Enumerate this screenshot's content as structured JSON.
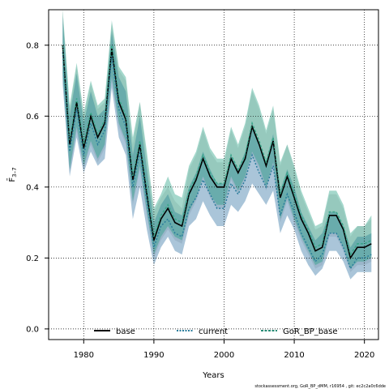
{
  "chart_data": {
    "type": "line",
    "xlabel": "Years",
    "ylabel": "F̄3–7",
    "ylabel_parts": {
      "main": "F̄",
      "sub": "3–7"
    },
    "xlim": [
      1975,
      2022
    ],
    "ylim": [
      -0.03,
      0.9
    ],
    "xticks": [
      1980,
      1990,
      2000,
      2010,
      2020
    ],
    "yticks": [
      0.0,
      0.2,
      0.4,
      0.6,
      0.8
    ],
    "ytick_labels": [
      "0.0",
      "0.2",
      "0.4",
      "0.6",
      "0.8"
    ],
    "grid": true,
    "legend_position": "bottom",
    "footer_note": "stockassessment.org, GoR_BP_dMM, r16954 , git: ec2c2a0c6dde",
    "x": [
      1977,
      1978,
      1979,
      1980,
      1981,
      1982,
      1983,
      1984,
      1985,
      1986,
      1987,
      1988,
      1989,
      1990,
      1991,
      1992,
      1993,
      1994,
      1995,
      1996,
      1997,
      1998,
      1999,
      2000,
      2001,
      2002,
      2003,
      2004,
      2005,
      2006,
      2007,
      2008,
      2009,
      2010,
      2011,
      2012,
      2013,
      2014,
      2015,
      2016,
      2017,
      2018,
      2019,
      2020,
      2021
    ],
    "series": [
      {
        "name": "base",
        "color": "#000000",
        "dash": "solid",
        "values": [
          0.8,
          0.52,
          0.64,
          0.51,
          0.6,
          0.54,
          0.58,
          0.79,
          0.64,
          0.59,
          0.42,
          0.52,
          0.38,
          0.25,
          0.31,
          0.34,
          0.3,
          0.29,
          0.38,
          0.42,
          0.48,
          0.43,
          0.4,
          0.4,
          0.48,
          0.44,
          0.48,
          0.57,
          0.52,
          0.46,
          0.53,
          0.37,
          0.43,
          0.37,
          0.31,
          0.27,
          0.22,
          0.23,
          0.32,
          0.32,
          0.28,
          0.2,
          0.23,
          0.23,
          0.24
        ],
        "upper": [
          0.9,
          0.62,
          0.74,
          0.6,
          0.69,
          0.62,
          0.64,
          0.86,
          0.73,
          0.7,
          0.52,
          0.64,
          0.48,
          0.33,
          0.37,
          0.4,
          0.36,
          0.34,
          0.45,
          0.49,
          0.56,
          0.5,
          0.47,
          0.47,
          0.56,
          0.51,
          0.57,
          0.67,
          0.62,
          0.55,
          0.62,
          0.46,
          0.52,
          0.45,
          0.38,
          0.33,
          0.28,
          0.29,
          0.38,
          0.38,
          0.34,
          0.26,
          0.29,
          0.29,
          0.31
        ],
        "lower": [
          0.71,
          0.44,
          0.56,
          0.45,
          0.52,
          0.47,
          0.51,
          0.7,
          0.57,
          0.52,
          0.35,
          0.45,
          0.32,
          0.2,
          0.25,
          0.28,
          0.25,
          0.24,
          0.32,
          0.36,
          0.42,
          0.37,
          0.34,
          0.34,
          0.42,
          0.38,
          0.42,
          0.49,
          0.45,
          0.39,
          0.46,
          0.3,
          0.36,
          0.3,
          0.25,
          0.21,
          0.17,
          0.18,
          0.26,
          0.26,
          0.22,
          0.16,
          0.18,
          0.18,
          0.19
        ]
      },
      {
        "name": "current",
        "color": "#2b7d9c",
        "dash": "dotted",
        "values": [
          0.78,
          0.5,
          0.62,
          0.49,
          0.58,
          0.52,
          0.56,
          0.77,
          0.62,
          0.57,
          0.4,
          0.5,
          0.36,
          0.23,
          0.29,
          0.31,
          0.27,
          0.26,
          0.34,
          0.37,
          0.42,
          0.38,
          0.34,
          0.34,
          0.41,
          0.38,
          0.42,
          0.49,
          0.44,
          0.4,
          0.46,
          0.32,
          0.38,
          0.33,
          0.27,
          0.23,
          0.19,
          0.21,
          0.27,
          0.27,
          0.23,
          0.17,
          0.2,
          0.2,
          0.21
        ],
        "upper": [
          0.88,
          0.6,
          0.72,
          0.58,
          0.67,
          0.6,
          0.62,
          0.84,
          0.71,
          0.67,
          0.49,
          0.6,
          0.45,
          0.3,
          0.35,
          0.38,
          0.33,
          0.32,
          0.4,
          0.44,
          0.5,
          0.45,
          0.41,
          0.41,
          0.49,
          0.45,
          0.5,
          0.58,
          0.52,
          0.47,
          0.55,
          0.39,
          0.45,
          0.4,
          0.33,
          0.29,
          0.25,
          0.27,
          0.33,
          0.33,
          0.29,
          0.23,
          0.26,
          0.26,
          0.27
        ],
        "lower": [
          0.69,
          0.43,
          0.54,
          0.44,
          0.5,
          0.46,
          0.48,
          0.68,
          0.54,
          0.49,
          0.31,
          0.4,
          0.28,
          0.18,
          0.23,
          0.26,
          0.22,
          0.21,
          0.29,
          0.31,
          0.36,
          0.32,
          0.29,
          0.29,
          0.35,
          0.33,
          0.36,
          0.41,
          0.38,
          0.35,
          0.39,
          0.27,
          0.32,
          0.28,
          0.22,
          0.18,
          0.15,
          0.17,
          0.22,
          0.22,
          0.19,
          0.14,
          0.16,
          0.16,
          0.16
        ]
      },
      {
        "name": "GoR_BP_base",
        "color": "#3aa589",
        "dash": "dashed",
        "values": [
          0.8,
          0.53,
          0.65,
          0.52,
          0.61,
          0.55,
          0.59,
          0.8,
          0.65,
          0.6,
          0.43,
          0.53,
          0.39,
          0.26,
          0.32,
          0.35,
          0.31,
          0.3,
          0.39,
          0.43,
          0.49,
          0.44,
          0.41,
          0.41,
          0.49,
          0.45,
          0.49,
          0.58,
          0.53,
          0.47,
          0.54,
          0.38,
          0.44,
          0.38,
          0.32,
          0.28,
          0.23,
          0.24,
          0.33,
          0.33,
          0.29,
          0.21,
          0.24,
          0.24,
          0.25
        ],
        "upper": [
          0.9,
          0.63,
          0.75,
          0.61,
          0.7,
          0.63,
          0.65,
          0.87,
          0.74,
          0.71,
          0.54,
          0.64,
          0.5,
          0.34,
          0.38,
          0.43,
          0.38,
          0.37,
          0.46,
          0.5,
          0.57,
          0.51,
          0.48,
          0.48,
          0.57,
          0.52,
          0.58,
          0.68,
          0.63,
          0.56,
          0.63,
          0.47,
          0.52,
          0.46,
          0.39,
          0.34,
          0.29,
          0.3,
          0.39,
          0.39,
          0.35,
          0.27,
          0.29,
          0.29,
          0.32
        ],
        "lower": [
          0.72,
          0.45,
          0.57,
          0.46,
          0.53,
          0.48,
          0.52,
          0.71,
          0.58,
          0.53,
          0.36,
          0.46,
          0.33,
          0.21,
          0.26,
          0.29,
          0.26,
          0.25,
          0.33,
          0.37,
          0.43,
          0.38,
          0.35,
          0.35,
          0.43,
          0.39,
          0.43,
          0.5,
          0.46,
          0.4,
          0.47,
          0.31,
          0.37,
          0.31,
          0.26,
          0.22,
          0.18,
          0.19,
          0.27,
          0.27,
          0.23,
          0.17,
          0.19,
          0.19,
          0.2
        ]
      }
    ]
  }
}
